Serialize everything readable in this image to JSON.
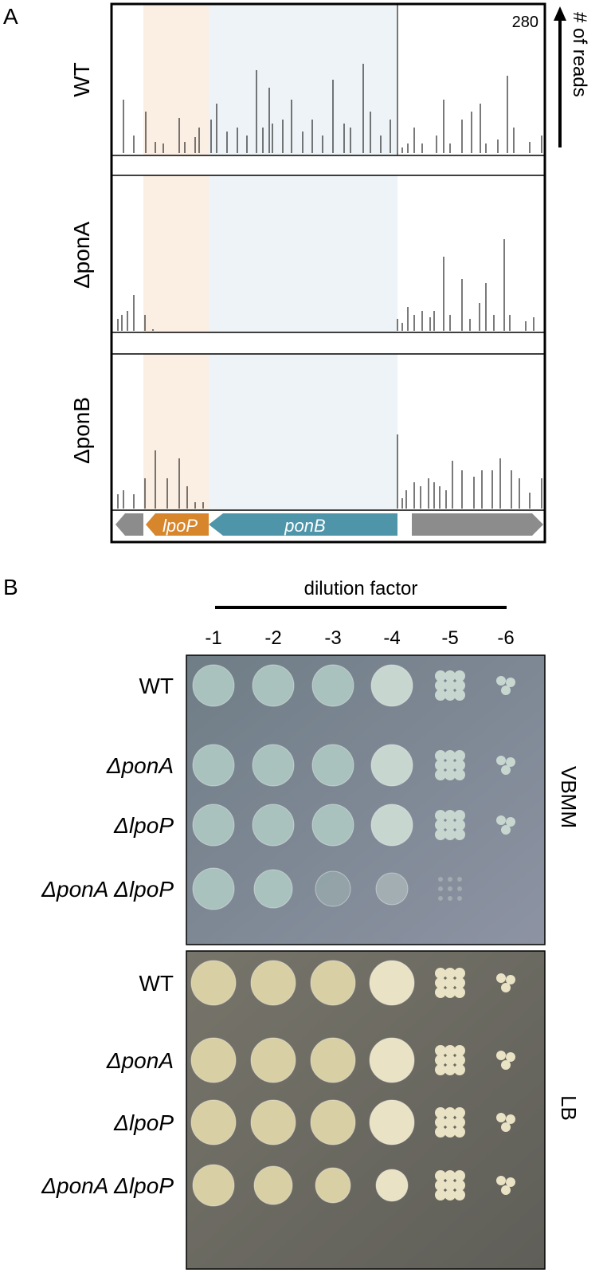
{
  "panel_a": {
    "label": "A",
    "tracks": [
      "WT",
      "ΔponA",
      "ΔponB"
    ],
    "scale_max": 280,
    "axis_label": "# of reads",
    "genes": [
      "lpoP",
      "ponB"
    ]
  },
  "panel_b": {
    "label": "B",
    "dilution_title": "dilution factor",
    "dilutions": [
      "-1",
      "-2",
      "-3",
      "-4",
      "-5",
      "-6"
    ],
    "plates": [
      {
        "medium": "VBMM",
        "strains": [
          "WT",
          "ΔponA",
          "ΔlpoP",
          "ΔponA ΔlpoP"
        ]
      },
      {
        "medium": "LB",
        "strains": [
          "WT",
          "ΔponA",
          "ΔlpoP",
          "ΔponA ΔlpoP"
        ]
      }
    ]
  }
}
